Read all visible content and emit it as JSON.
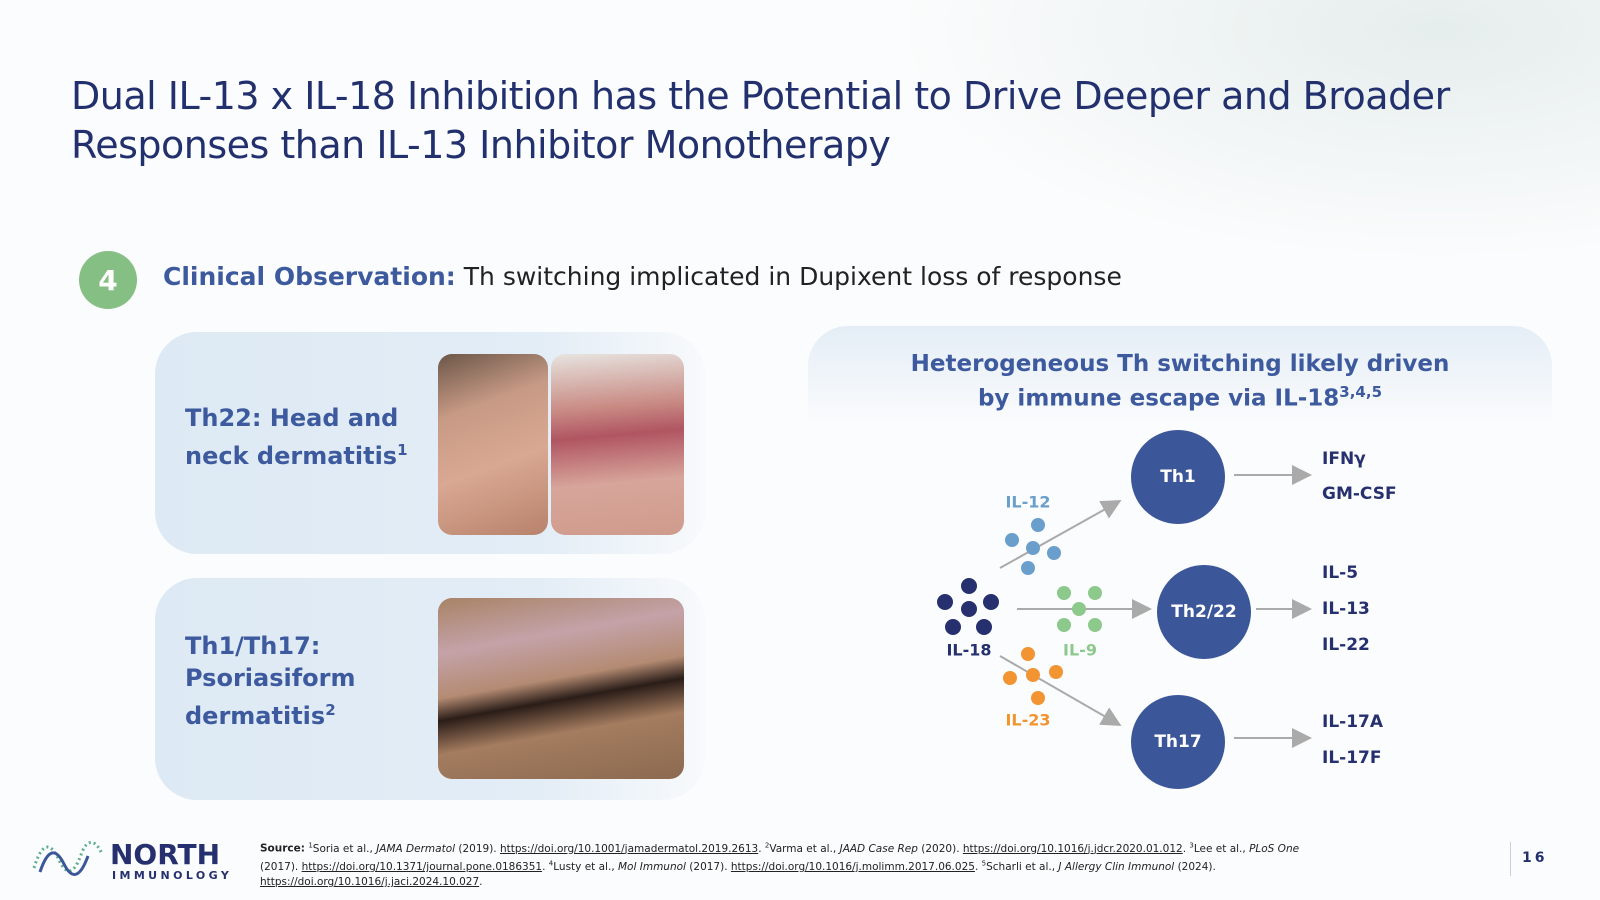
{
  "header": {
    "title_lines": [
      "Dual IL-13 x IL-18 Inhibition has the Potential to Drive Deeper and Broader",
      "Responses than IL-13 Inhibitor Monotherapy"
    ]
  },
  "observation": {
    "number": "4",
    "label": "Clinical Observation:",
    "text": "Th switching implicated in Dupixent loss of response"
  },
  "cards": [
    {
      "lines": [
        "Th22: Head and",
        "neck dermatitis"
      ],
      "sup": "1"
    },
    {
      "lines": [
        "Th1/Th17:",
        "Psoriasiform",
        "dermatitis"
      ],
      "sup": "2"
    }
  ],
  "diagram": {
    "title_lines": [
      "Heterogeneous Th switching likely driven",
      "by immune escape via IL-18"
    ],
    "title_sup": "3,4,5",
    "source_node": "IL-18",
    "cytokines": [
      "IL-12",
      "IL-9",
      "IL-23"
    ],
    "nodes": [
      {
        "label": "Th1",
        "outputs": [
          "IFNγ",
          "GM-CSF"
        ]
      },
      {
        "label": "Th2/22",
        "outputs": [
          "IL-5",
          "IL-13",
          "IL-22"
        ]
      },
      {
        "label": "Th17",
        "outputs": [
          "IL-17A",
          "IL-17F"
        ]
      }
    ]
  },
  "footer": {
    "logo": {
      "name": "NORTH",
      "sub": "IMMUNOLOGY"
    },
    "source_label": "Source:",
    "references": [
      {
        "sup": "1",
        "authors": "Soria et al.,",
        "journal": "JAMA Dermatol",
        "year": "(2019).",
        "url": "https://doi.org/10.1001/jamadermatol.2019.2613",
        "end": "."
      },
      {
        "sup": "2",
        "authors": "Varma et al.,",
        "journal": "JAAD Case Rep",
        "year": "(2020).",
        "url": "https://doi.org/10.1016/j.jdcr.2020.01.012",
        "end": "."
      },
      {
        "sup": "3",
        "authors": "Lee et al.,",
        "journal": "PLoS One",
        "year": "(2017).",
        "url": "https://doi.org/10.1371/journal.pone.0186351",
        "end": "."
      },
      {
        "sup": "4",
        "authors": "Lusty et al.,",
        "journal": "Mol Immunol",
        "year": "(2017).",
        "url": "https://doi.org/10.1016/j.molimm.2017.06.025",
        "end": "."
      },
      {
        "sup": "5",
        "authors": "Scharli et al.,",
        "journal": "J Allergy Clin Immunol",
        "year": "(2024).",
        "url": "https://doi.org/10.1016/j.jaci.2024.10.027",
        "end": "."
      }
    ],
    "page_number": "16"
  }
}
